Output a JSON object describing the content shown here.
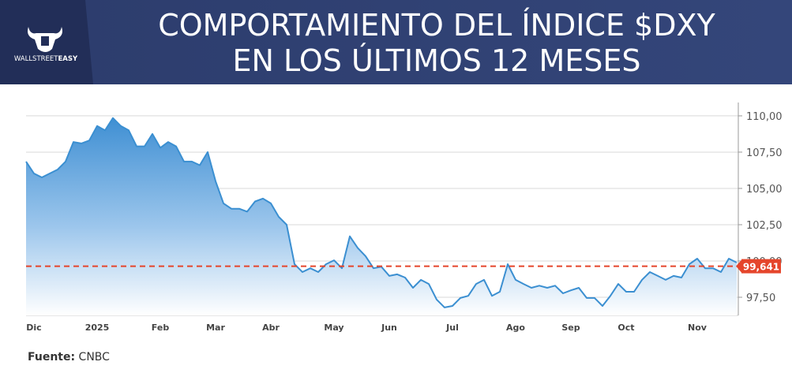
{
  "chart_data": {
    "type": "area",
    "title": [
      "COMPORTAMIENTO DEL ÍNDICE $DXY",
      "EN LOS ÚLTIMOS 12 MESES"
    ],
    "logo": [
      "WALLSTREET",
      "EASY"
    ],
    "source_label": "Fuente:",
    "source": "CNBC",
    "color": "#3b8fd1",
    "categories": [
      null,
      "Dic",
      null,
      null,
      null,
      null,
      null,
      null,
      null,
      "2025",
      null,
      null,
      null,
      null,
      null,
      null,
      null,
      "Feb",
      null,
      null,
      null,
      null,
      null,
      null,
      "Mar",
      null,
      null,
      null,
      null,
      null,
      null,
      "Abr",
      null,
      null,
      null,
      null,
      null,
      null,
      null,
      "May",
      null,
      null,
      null,
      null,
      null,
      null,
      "Jun",
      null,
      null,
      null,
      null,
      null,
      null,
      null,
      "Jul",
      null,
      null,
      null,
      null,
      null,
      null,
      null,
      "Ago",
      null,
      null,
      null,
      null,
      null,
      null,
      "Sep",
      null,
      null,
      null,
      null,
      null,
      null,
      "Oct",
      null,
      null,
      null,
      null,
      null,
      null,
      null,
      null,
      "Nov",
      null,
      null,
      null,
      null,
      null
    ],
    "values": [
      106.85,
      106.03,
      105.76,
      106.03,
      106.3,
      106.85,
      108.2,
      108.1,
      108.3,
      109.3,
      109.0,
      109.85,
      109.3,
      109.0,
      107.9,
      107.9,
      108.75,
      107.8,
      108.2,
      107.9,
      106.85,
      106.85,
      106.6,
      107.5,
      105.5,
      103.97,
      103.6,
      103.6,
      103.4,
      104.1,
      104.3,
      103.97,
      103.04,
      102.5,
      99.78,
      99.24,
      99.5,
      99.24,
      99.78,
      100.05,
      99.5,
      101.7,
      100.9,
      100.33,
      99.5,
      99.6,
      98.97,
      99.08,
      98.86,
      98.15,
      98.7,
      98.42,
      97.34,
      96.8,
      96.9,
      97.45,
      97.6,
      98.42,
      98.7,
      97.6,
      97.88,
      99.78,
      98.7,
      98.42,
      98.15,
      98.3,
      98.15,
      98.3,
      97.77,
      97.98,
      98.15,
      97.45,
      97.45,
      96.9,
      97.6,
      98.42,
      97.88,
      97.88,
      98.7,
      99.24,
      98.97,
      98.7,
      98.97,
      98.86,
      99.78,
      100.16,
      99.5,
      99.5,
      99.24,
      100.16,
      99.89
    ],
    "ylim": [
      96.25,
      110.92
    ],
    "yticks": [
      {
        "value": 97.5,
        "label": "97,50"
      },
      {
        "value": 100,
        "label": "100,00"
      },
      {
        "value": 102.5,
        "label": "102,50"
      },
      {
        "value": 105,
        "label": "105,00"
      },
      {
        "value": 107.5,
        "label": "107,50"
      },
      {
        "value": 110,
        "label": "110,00"
      }
    ],
    "grid": true,
    "reference_line": {
      "value": 99.641,
      "label": "99,641",
      "color": "#e5452b"
    }
  }
}
